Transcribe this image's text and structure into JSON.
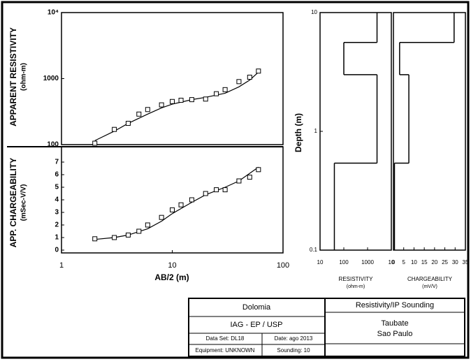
{
  "chart_data": [
    {
      "type": "scatter",
      "xlog": true,
      "ylog": true,
      "xlim": [
        1,
        100
      ],
      "ylim": [
        100,
        10000
      ],
      "yticks": [
        100,
        1000,
        {
          "value": 10000,
          "label": "10⁴"
        }
      ],
      "ylabel": "APPARENT RESISTIVITY",
      "ylabel_unit": "(ohm-m)",
      "points": {
        "x": [
          2,
          3,
          4,
          5,
          6,
          8,
          10,
          12,
          15,
          20,
          25,
          30,
          40,
          50,
          60
        ],
        "values": [
          105,
          170,
          210,
          290,
          340,
          400,
          450,
          470,
          480,
          490,
          590,
          680,
          900,
          1050,
          1300
        ]
      },
      "fit": {
        "x": [
          2,
          3,
          4,
          6,
          8,
          10,
          15,
          20,
          30,
          40,
          50,
          60
        ],
        "values": [
          115,
          160,
          210,
          290,
          360,
          410,
          480,
          520,
          600,
          750,
          950,
          1250
        ]
      }
    },
    {
      "type": "scatter",
      "xlog": true,
      "xlim": [
        1,
        100
      ],
      "ylim": [
        0,
        8
      ],
      "yticks": [
        0,
        1,
        2,
        3,
        4,
        5,
        6,
        7
      ],
      "xticks": [
        1,
        10,
        100
      ],
      "ylabel": "APP. CHARGEABILITY",
      "ylabel_unit": "(mSec-V/V)",
      "xlabel": "AB/2 (m)",
      "points": {
        "x": [
          2,
          3,
          4,
          5,
          6,
          8,
          10,
          12,
          15,
          20,
          25,
          30,
          40,
          50,
          60
        ],
        "values": [
          0.9,
          1.0,
          1.2,
          1.5,
          2.0,
          2.6,
          3.2,
          3.6,
          4.0,
          4.5,
          4.8,
          4.8,
          5.5,
          5.8,
          6.4
        ]
      },
      "fit": {
        "x": [
          2,
          3,
          4,
          6,
          8,
          10,
          15,
          20,
          30,
          40,
          60
        ],
        "values": [
          0.85,
          1.0,
          1.2,
          1.7,
          2.3,
          2.9,
          3.8,
          4.4,
          5.0,
          5.5,
          6.6
        ]
      }
    },
    {
      "type": "step",
      "xlog": true,
      "ylog": true,
      "xlim": [
        10,
        10000
      ],
      "ylim": [
        0.1,
        10
      ],
      "xticks": [
        10,
        100,
        1000,
        {
          "value": 10000,
          "label": "10"
        }
      ],
      "yticks": [
        0.1,
        1,
        10
      ],
      "ylabel": "Depth (m)",
      "xlabel": "RESISTIVITY",
      "xlabel_unit": "(ohm-m)",
      "boundaries": [
        0.54,
        3,
        5.6
      ],
      "values": [
        40,
        2500,
        100,
        2500
      ]
    },
    {
      "type": "step",
      "ylog": true,
      "xlim": [
        0,
        35
      ],
      "ylim": [
        0.1,
        10
      ],
      "xticks": [
        0,
        5,
        10,
        15,
        20,
        25,
        30,
        35
      ],
      "xlabel": "CHARGEABILITY",
      "xlabel_unit": "(mV/V)",
      "boundaries": [
        0.54,
        3,
        5.6
      ],
      "values": [
        0.5,
        7.5,
        3,
        29.5
      ]
    }
  ],
  "title_block": {
    "name": "Dolomia",
    "org": "IAG - EP / USP",
    "data_set": "Data Set: DL18",
    "date": "Date: ago 2013",
    "equipment": "Equipment: UNKNOWN",
    "sounding": "Sounding: 10",
    "heading": "Resistivity/IP Sounding",
    "place": "Taubate",
    "state": "Sao Paulo"
  }
}
